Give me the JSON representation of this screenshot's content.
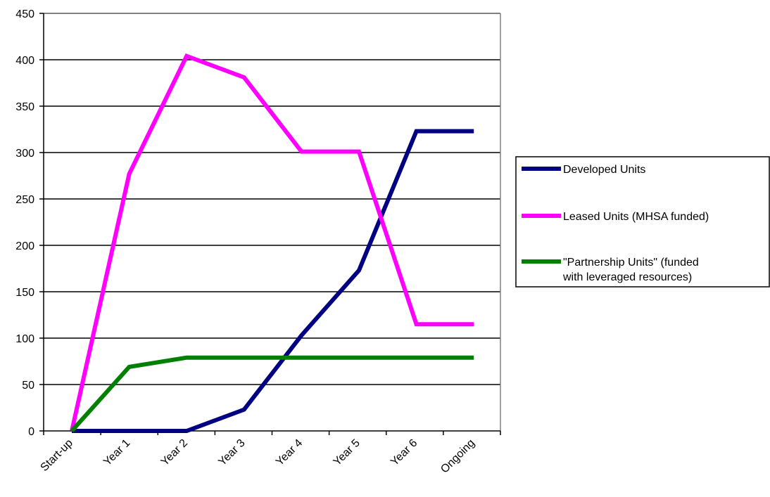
{
  "chart_data": {
    "type": "line",
    "title": "",
    "xlabel": "",
    "ylabel": "",
    "categories": [
      "Start-up",
      "Year 1",
      "Year 2",
      "Year 3",
      "Year 4",
      "Year 5",
      "Year 6",
      "Ongoing"
    ],
    "ylim": [
      0,
      450
    ],
    "yticks": [
      0,
      50,
      100,
      150,
      200,
      250,
      300,
      350,
      400,
      450
    ],
    "grid": "horizontal",
    "legend_position": "right",
    "series": [
      {
        "name": "Developed Units",
        "color": "#000080",
        "values": [
          0,
          0,
          0,
          23,
          103,
          173,
          323,
          323
        ]
      },
      {
        "name": "Leased Units (MHSA funded)",
        "color": "#ff00ff",
        "values": [
          0,
          277,
          404,
          381,
          301,
          301,
          115,
          115
        ]
      },
      {
        "name": "\"Partnership Units\" (funded with leveraged resources)",
        "legend_lines": [
          "\"Partnership Units\" (funded",
          "with leveraged resources)"
        ],
        "color": "#008000",
        "values": [
          0,
          69,
          79,
          79,
          79,
          79,
          79,
          79
        ]
      }
    ]
  }
}
